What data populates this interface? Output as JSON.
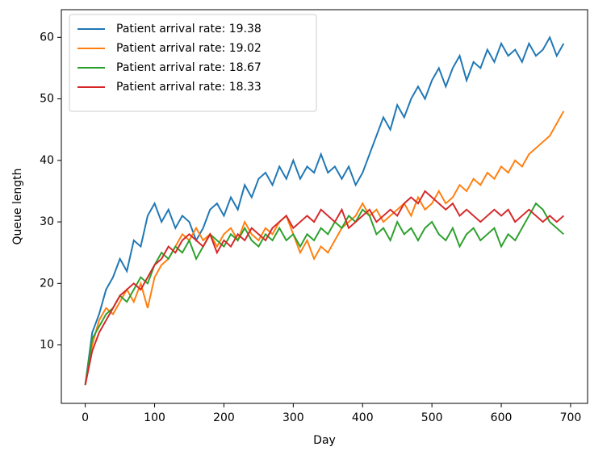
{
  "chart_data": {
    "type": "line",
    "xlabel": "Day",
    "ylabel": "Queue length",
    "x": [
      0,
      10,
      20,
      30,
      40,
      50,
      60,
      70,
      80,
      90,
      100,
      110,
      120,
      130,
      140,
      150,
      160,
      170,
      180,
      190,
      200,
      210,
      220,
      230,
      240,
      250,
      260,
      270,
      280,
      290,
      300,
      310,
      320,
      330,
      340,
      350,
      360,
      370,
      380,
      390,
      400,
      410,
      420,
      430,
      440,
      450,
      460,
      470,
      480,
      490,
      500,
      510,
      520,
      530,
      540,
      550,
      560,
      570,
      580,
      590,
      600,
      610,
      620,
      630,
      640,
      650,
      660,
      670,
      680,
      690
    ],
    "series": [
      {
        "name": "Patient arrival rate: 19.38",
        "color": "#1f77b4",
        "values": [
          3.5,
          12,
          15,
          19,
          21,
          24,
          22,
          27,
          26,
          31,
          33,
          30,
          32,
          29,
          31,
          30,
          27,
          29,
          32,
          33,
          31,
          34,
          32,
          36,
          34,
          37,
          38,
          36,
          39,
          37,
          40,
          37,
          39,
          38,
          41,
          38,
          39,
          37,
          39,
          36,
          38,
          41,
          44,
          47,
          45,
          49,
          47,
          50,
          52,
          50,
          53,
          55,
          52,
          55,
          57,
          53,
          56,
          55,
          58,
          56,
          59,
          57,
          58,
          56,
          59,
          57,
          58,
          60,
          57,
          59
        ]
      },
      {
        "name": "Patient arrival rate: 19.02",
        "color": "#ff7f0e",
        "values": [
          3.5,
          10,
          14,
          16,
          15,
          17,
          19,
          17,
          20,
          16,
          21,
          23,
          24,
          26,
          28,
          27,
          29,
          27,
          28,
          26,
          28,
          29,
          27,
          30,
          28,
          27,
          29,
          28,
          30,
          31,
          28,
          25,
          27,
          24,
          26,
          25,
          27,
          29,
          30,
          31,
          33,
          31,
          32,
          30,
          31,
          32,
          33,
          31,
          34,
          32,
          33,
          35,
          33,
          34,
          36,
          35,
          37,
          36,
          38,
          37,
          39,
          38,
          40,
          39,
          41,
          42,
          43,
          44,
          46,
          48
        ]
      },
      {
        "name": "Patient arrival rate: 18.67",
        "color": "#2ca02c",
        "values": [
          3.5,
          11,
          13,
          15,
          16,
          18,
          17,
          19,
          21,
          20,
          23,
          25,
          24,
          26,
          25,
          27,
          24,
          26,
          28,
          27,
          26,
          28,
          27,
          29,
          27,
          26,
          28,
          27,
          29,
          27,
          28,
          26,
          28,
          27,
          29,
          28,
          30,
          29,
          31,
          30,
          32,
          31,
          28,
          29,
          27,
          30,
          28,
          29,
          27,
          29,
          30,
          28,
          27,
          29,
          26,
          28,
          29,
          27,
          28,
          29,
          26,
          28,
          27,
          29,
          31,
          33,
          32,
          30,
          29,
          28
        ]
      },
      {
        "name": "Patient arrival rate: 18.33",
        "color": "#d62728",
        "values": [
          3.5,
          9,
          12,
          14,
          16,
          18,
          19,
          20,
          19,
          21,
          23,
          24,
          26,
          25,
          27,
          28,
          27,
          26,
          28,
          25,
          27,
          26,
          28,
          27,
          29,
          28,
          27,
          29,
          30,
          31,
          29,
          30,
          31,
          30,
          32,
          31,
          30,
          32,
          29,
          30,
          31,
          32,
          30,
          31,
          32,
          31,
          33,
          34,
          33,
          35,
          34,
          33,
          32,
          33,
          31,
          32,
          31,
          30,
          31,
          32,
          31,
          32,
          30,
          31,
          32,
          31,
          30,
          31,
          30,
          31
        ]
      }
    ],
    "xlim": [
      -34.5,
      724.5
    ],
    "ylim": [
      0.5,
      64.5
    ],
    "xticks": [
      0,
      100,
      200,
      300,
      400,
      500,
      600,
      700
    ],
    "yticks": [
      10,
      20,
      30,
      40,
      50,
      60
    ],
    "legend": "upper left"
  }
}
